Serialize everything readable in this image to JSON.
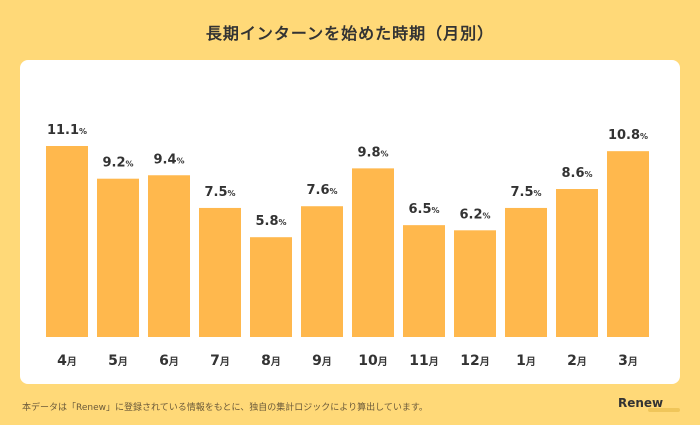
{
  "title": "長期インターンを始めた時期（月別）",
  "footer_note": "本データは「Renew」に登録されている情報をもとに、独自の集計ロジックにより算出しています。",
  "brand": "Renew",
  "colors": {
    "bar": "#FFB84D",
    "background": "#FFD978",
    "card": "#FFFFFF",
    "text": "#333333"
  },
  "chart_data": {
    "type": "bar",
    "title": "長期インターンを始めた時期（月別）",
    "unit": "%",
    "categories": [
      "4月",
      "5月",
      "6月",
      "7月",
      "8月",
      "9月",
      "10月",
      "11月",
      "12月",
      "1月",
      "2月",
      "3月"
    ],
    "values": [
      11.1,
      9.2,
      9.4,
      7.5,
      5.8,
      7.6,
      9.8,
      6.5,
      6.2,
      7.5,
      8.6,
      10.8
    ],
    "value_labels": [
      "11.1",
      "9.2",
      "9.4",
      "7.5",
      "5.8",
      "7.6",
      "9.8",
      "6.5",
      "6.2",
      "7.5",
      "8.6",
      "10.8"
    ],
    "category_nums": [
      "4",
      "5",
      "6",
      "7",
      "8",
      "9",
      "10",
      "11",
      "12",
      "1",
      "2",
      "3"
    ],
    "category_suffix": "月",
    "ylim": [
      0,
      11.1
    ],
    "grid": false,
    "legend": "none"
  }
}
